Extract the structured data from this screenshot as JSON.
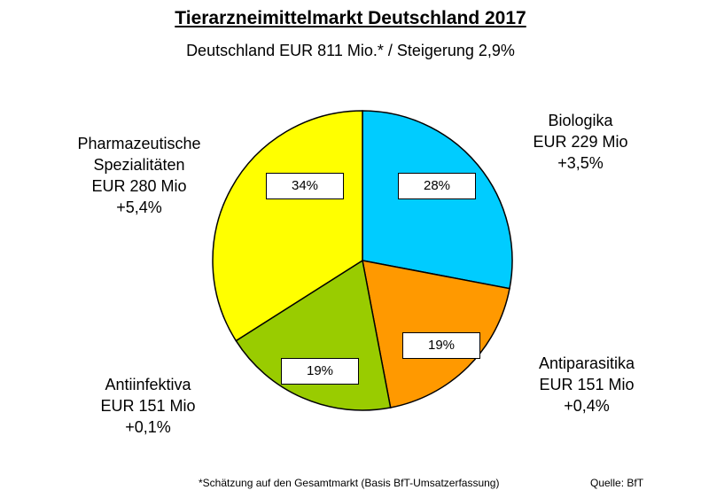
{
  "chart_data": {
    "type": "pie",
    "title": "Tierarzneimittelmarkt Deutschland 2017",
    "subtitle": "Deutschland EUR 811 Mio.* / Steigerung 2,9%",
    "slices": [
      {
        "lines": [
          "Biologika",
          "EUR 229 Mio",
          "+3,5%"
        ],
        "value": 28,
        "percent_label": "28%",
        "color": "#00CCFF"
      },
      {
        "lines": [
          "Antiparasitika",
          "EUR 151 Mio",
          "+0,4%"
        ],
        "value": 19,
        "percent_label": "19%",
        "color": "#FF9900"
      },
      {
        "lines": [
          "Antiinfektiva",
          "EUR 151 Mio",
          "+0,1%"
        ],
        "value": 19,
        "percent_label": "19%",
        "color": "#99CC00"
      },
      {
        "lines": [
          "Pharmazeutische",
          "Spezialitäten",
          "EUR 280 Mio",
          "+5,4%"
        ],
        "value": 34,
        "percent_label": "34%",
        "color": "#FFFF00"
      }
    ],
    "footnote": "*Schätzung auf den Gesamtmarkt (Basis BfT-Umsatzerfassung)",
    "source": "Quelle: BfT"
  }
}
